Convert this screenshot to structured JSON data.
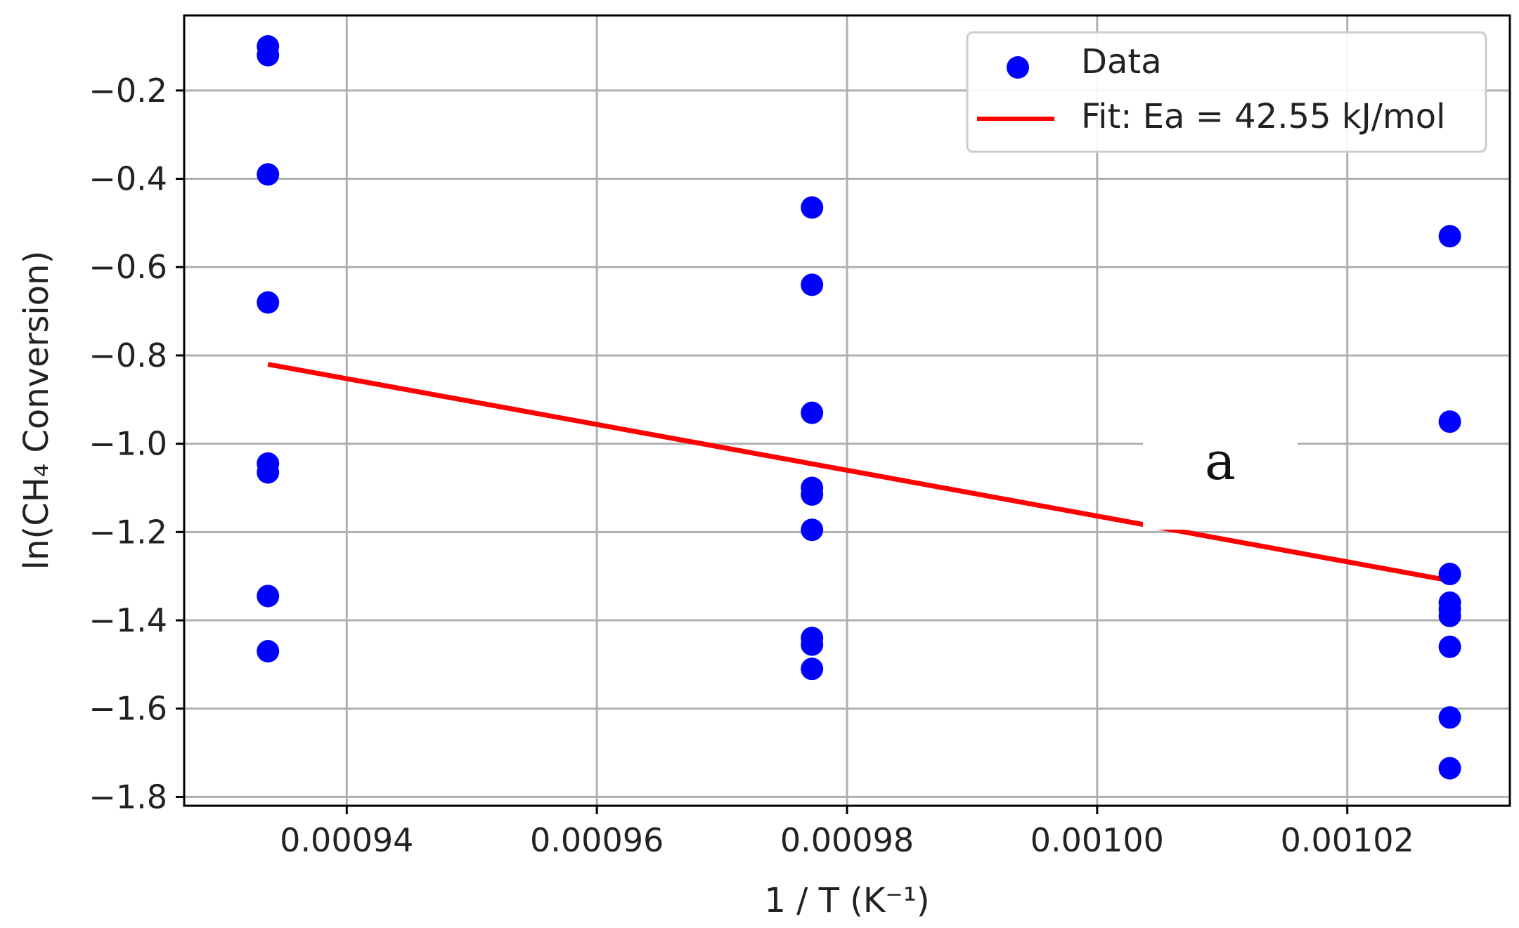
{
  "chart_data": {
    "type": "scatter",
    "xlabel": "1 / T (K⁻¹)",
    "ylabel": "ln(CH₄ Conversion)",
    "xlim": [
      0.000927,
      0.001033
    ],
    "ylim": [
      -1.82,
      -0.03
    ],
    "xticks": [
      0.00094,
      0.00096,
      0.00098,
      0.001,
      0.00102
    ],
    "xtick_labels": [
      "0.00094",
      "0.00096",
      "0.00098",
      "0.00100",
      "0.00102"
    ],
    "yticks": [
      -0.2,
      -0.4,
      -0.6,
      -0.8,
      -1.0,
      -1.2,
      -1.4,
      -1.6,
      -1.8
    ],
    "ytick_labels": [
      "−0.2",
      "−0.4",
      "−0.6",
      "−0.8",
      "−1.0",
      "−1.2",
      "−1.4",
      "−1.6",
      "−1.8"
    ],
    "grid": true,
    "legend_position": "top-right",
    "series": [
      {
        "name": "Data",
        "kind": "scatter",
        "color": "#0000ff",
        "points": [
          {
            "x": 0.0009337,
            "y": -0.1
          },
          {
            "x": 0.0009337,
            "y": -0.12
          },
          {
            "x": 0.0009337,
            "y": -0.39
          },
          {
            "x": 0.0009337,
            "y": -0.68
          },
          {
            "x": 0.0009337,
            "y": -1.045
          },
          {
            "x": 0.0009337,
            "y": -1.065
          },
          {
            "x": 0.0009337,
            "y": -1.345
          },
          {
            "x": 0.0009337,
            "y": -1.47
          },
          {
            "x": 0.0009772,
            "y": -0.465
          },
          {
            "x": 0.0009772,
            "y": -0.64
          },
          {
            "x": 0.0009772,
            "y": -0.93
          },
          {
            "x": 0.0009772,
            "y": -1.1
          },
          {
            "x": 0.0009772,
            "y": -1.115
          },
          {
            "x": 0.0009772,
            "y": -1.195
          },
          {
            "x": 0.0009772,
            "y": -1.44
          },
          {
            "x": 0.0009772,
            "y": -1.455
          },
          {
            "x": 0.0009772,
            "y": -1.51
          },
          {
            "x": 0.0010282,
            "y": -0.53
          },
          {
            "x": 0.0010282,
            "y": -0.95
          },
          {
            "x": 0.0010282,
            "y": -1.295
          },
          {
            "x": 0.0010282,
            "y": -1.36
          },
          {
            "x": 0.0010282,
            "y": -1.375
          },
          {
            "x": 0.0010282,
            "y": -1.39
          },
          {
            "x": 0.0010282,
            "y": -1.46
          },
          {
            "x": 0.0010282,
            "y": -1.62
          },
          {
            "x": 0.0010282,
            "y": -1.735
          }
        ]
      },
      {
        "name": "Fit: Ea = 42.55 kJ/mol",
        "kind": "line",
        "color": "#ff0000",
        "points": [
          {
            "x": 0.0009337,
            "y": -0.82
          },
          {
            "x": 0.0010282,
            "y": -1.31
          }
        ]
      }
    ],
    "annotations": [
      {
        "text": "a",
        "x": 0.001009,
        "y": -1.08
      }
    ]
  }
}
